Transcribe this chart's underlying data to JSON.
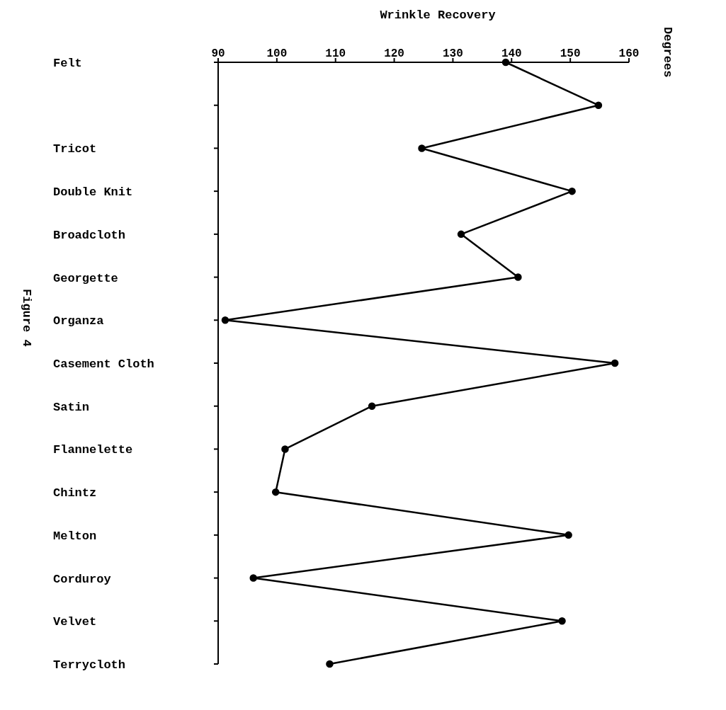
{
  "chart_data": {
    "type": "line",
    "orientation": "horizontal",
    "xlabel": "Wrinkle Recovery",
    "annotations": [
      "Degrees",
      "Figure 4"
    ],
    "categories": [
      "Felt",
      null,
      "Tricot",
      "Double Knit",
      "Broadcloth",
      "Georgette",
      "Organza",
      "Casement Cloth",
      "Satin",
      "Flannelette",
      "Chintz",
      "Melton",
      "Corduroy",
      "Velvet",
      "Terrycloth"
    ],
    "series": [
      {
        "color": "#000000",
        "values": [
          139,
          154.8,
          124.7,
          150.3,
          131.4,
          141.1,
          91.2,
          157.6,
          116.2,
          101.4,
          99.8,
          149.7,
          96,
          148.6,
          109
        ]
      }
    ],
    "xlim": [
      90,
      160
    ],
    "xticks": [
      90,
      100,
      110,
      120,
      130,
      140,
      150,
      160
    ],
    "grid": false,
    "legend": false,
    "marker": "circle",
    "line_style": "solid"
  }
}
